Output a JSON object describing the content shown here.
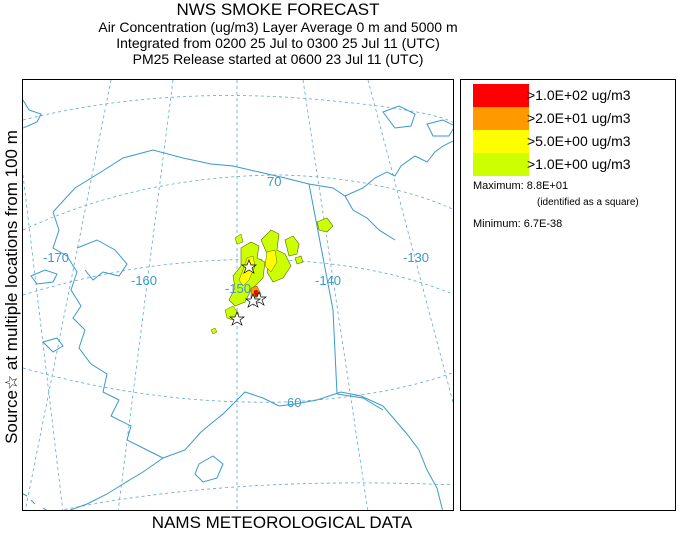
{
  "title": {
    "line1": "NWS SMOKE FORECAST",
    "line2": "Air Concentration (ug/m3) Layer Average    0 m and  5000 m",
    "line3": "Integrated from 0200 25 Jul to 0300 25 Jul 11 (UTC)",
    "line4": "PM25 Release started at 0600 23 Jul 11 (UTC)"
  },
  "side_label": "Source☆  at multiple locations   from   100 m",
  "footer": "NAMS METEOROLOGICAL DATA",
  "map": {
    "graticule_labels": {
      "lon_170": "-170",
      "lon_160": "-160",
      "lon_150": "-150",
      "lon_140": "-140",
      "lon_130": "-130",
      "lat_70": "70",
      "lat_60": "60"
    },
    "colors": {
      "coast": "#3a9ac9",
      "graticule": "#5fa8d6",
      "boundary": "#3a9ac9"
    },
    "source_marker": "star"
  },
  "legend": {
    "items": [
      {
        "label": ">1.0E+02 ug/m3",
        "color": "#ff0000"
      },
      {
        "label": ">2.0E+01 ug/m3",
        "color": "#ff9900"
      },
      {
        "label": ">5.0E+00 ug/m3",
        "color": "#ffff00"
      },
      {
        "label": ">1.0E+00 ug/m3",
        "color": "#ccff00"
      }
    ],
    "maximum": "Maximum: 8.8E+01",
    "maximum_note": "(identified as a square)",
    "minimum": "Minimum: 6.7E-38"
  }
}
